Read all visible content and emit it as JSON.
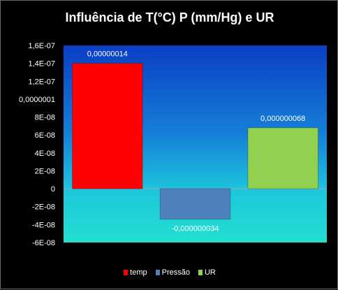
{
  "chart_data": {
    "type": "bar",
    "title": "Influência de T(°C) P (mm/Hg) e UR",
    "xlabel": "",
    "ylabel": "",
    "ylim": [
      -6e-08,
      1.6e-07
    ],
    "yticks": [
      "1,6E-07",
      "1,4E-07",
      "1,2E-07",
      "0,0000001",
      "8E-08",
      "6E-08",
      "4E-08",
      "2E-08",
      "0",
      "-2E-08",
      "-4E-08",
      "-6E-08"
    ],
    "ytick_values": [
      1.6e-07,
      1.4e-07,
      1.2e-07,
      1e-07,
      8e-08,
      6e-08,
      4e-08,
      2e-08,
      0,
      -2e-08,
      -4e-08,
      -6e-08
    ],
    "grid": false,
    "legend_position": "bottom",
    "series": [
      {
        "name": "temp",
        "value": 1.4e-07,
        "label": "0,00000014",
        "color": "#ff0000"
      },
      {
        "name": "Pressão",
        "value": -3.4e-08,
        "label": "-0,000000034",
        "color": "#4f81bd"
      },
      {
        "name": "UR",
        "value": 6.8e-08,
        "label": "0,000000068",
        "color": "#92d050"
      }
    ]
  }
}
